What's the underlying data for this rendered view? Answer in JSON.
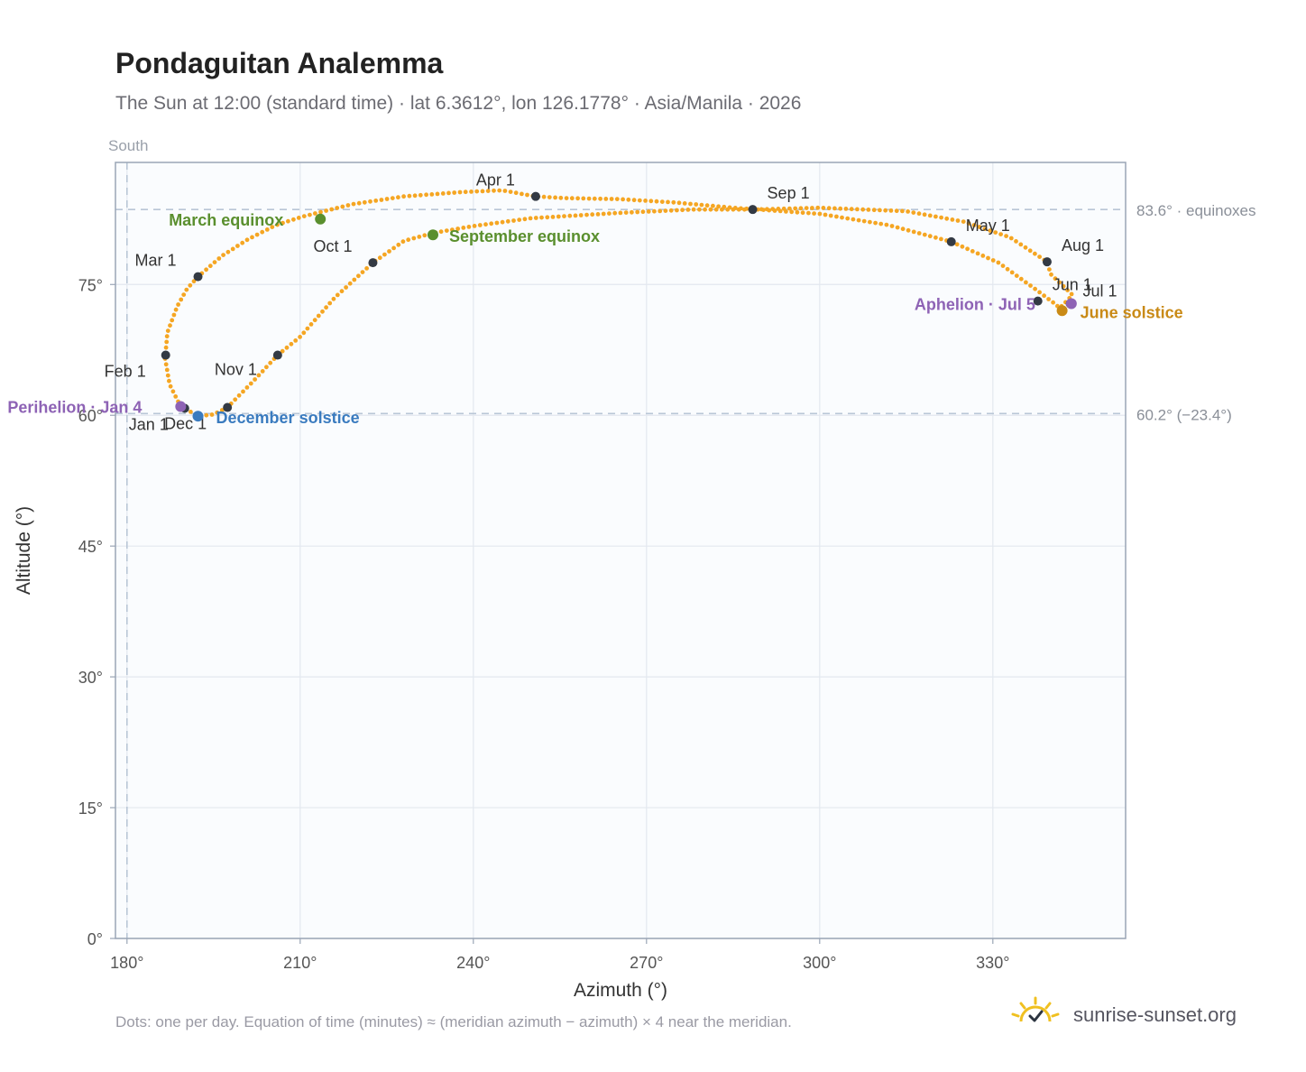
{
  "header": {
    "title": "Pondaguitan Analemma",
    "subtitle": "The Sun at 12:00 (standard time) · lat 6.3612°, lon 126.1778° · Asia/Manila · 2026"
  },
  "footer": {
    "note": "Dots: one per day. Equation of time (minutes) ≈ (meridian azimuth − azimuth) × 4 near the meridian.",
    "brand": "sunrise-sunset.org"
  },
  "colors": {
    "curve": "#f5a623",
    "month_dot": "#333a44",
    "equinox": "#5a8f2e",
    "december_solstice": "#3a7bbf",
    "june_solstice": "#c98a16",
    "apsis": "#8e63b5",
    "plot_bg": "#fafcfe",
    "grid": "#e3e8ef",
    "axis": "#9aa5b5",
    "ref_line": "#b9c6d6",
    "brand_sun": "#f0c020"
  },
  "chart_data": {
    "type": "scatter",
    "xlabel": "Azimuth (°)",
    "ylabel": "Altitude (°)",
    "xlim": [
      178,
      353
    ],
    "ylim": [
      0,
      89
    ],
    "xticks": [
      180,
      210,
      240,
      270,
      300,
      330
    ],
    "yticks": [
      0,
      15,
      30,
      45,
      60,
      75
    ],
    "x_tick_labels": [
      "180°",
      "210°",
      "240°",
      "270°",
      "300°",
      "330°"
    ],
    "y_tick_labels": [
      "0°",
      "15°",
      "30°",
      "45°",
      "60°",
      "75°"
    ],
    "grid": true,
    "meridian_label": "South",
    "meridian_azimuth": 180,
    "reference_lines": [
      {
        "altitude": 83.6,
        "label": "83.6° · equinoxes"
      },
      {
        "altitude": 60.2,
        "label": "60.2° (−23.4°)"
      }
    ],
    "path": [
      [
        189.3,
        61.0
      ],
      [
        187.4,
        63.5
      ],
      [
        186.6,
        66.5
      ],
      [
        187.0,
        69.5
      ],
      [
        188.7,
        72.5
      ],
      [
        190.4,
        74.5
      ],
      [
        192.3,
        75.9
      ],
      [
        196.5,
        78.3
      ],
      [
        201.0,
        80.2
      ],
      [
        205.8,
        81.8
      ],
      [
        210.5,
        82.8
      ],
      [
        213.5,
        83.3
      ],
      [
        219.0,
        84.2
      ],
      [
        228.0,
        85.1
      ],
      [
        238.0,
        85.6
      ],
      [
        245.0,
        85.8
      ],
      [
        250.8,
        85.1
      ],
      [
        256.0,
        84.9
      ],
      [
        265.0,
        84.8
      ],
      [
        275.0,
        84.4
      ],
      [
        285.0,
        83.8
      ],
      [
        300.0,
        83.1
      ],
      [
        312.0,
        81.8
      ],
      [
        322.8,
        79.9
      ],
      [
        331.0,
        77.5
      ],
      [
        337.5,
        74.4
      ],
      [
        340.5,
        72.9
      ],
      [
        341.6,
        72.3
      ],
      [
        343.8,
        73.8
      ],
      [
        340.0,
        76.2
      ],
      [
        339.4,
        77.6
      ],
      [
        333.0,
        80.4
      ],
      [
        325.0,
        82.2
      ],
      [
        315.0,
        83.4
      ],
      [
        300.0,
        83.8
      ],
      [
        288.4,
        83.6
      ],
      [
        278.0,
        83.6
      ],
      [
        265.0,
        83.2
      ],
      [
        250.0,
        82.6
      ],
      [
        240.0,
        81.7
      ],
      [
        233.0,
        80.9
      ],
      [
        228.0,
        80.0
      ],
      [
        222.6,
        77.5
      ],
      [
        216.0,
        73.5
      ],
      [
        210.0,
        69.0
      ],
      [
        206.1,
        66.9
      ],
      [
        202.0,
        64.0
      ],
      [
        197.4,
        60.9
      ],
      [
        195.0,
        60.1
      ],
      [
        192.3,
        59.9
      ],
      [
        190.0,
        60.8
      ],
      [
        189.3,
        61.0
      ]
    ],
    "month_markers": [
      {
        "label": "Jan 1",
        "azimuth": 190.0,
        "altitude": 60.8
      },
      {
        "label": "Feb 1",
        "azimuth": 186.7,
        "altitude": 66.9
      },
      {
        "label": "Mar 1",
        "azimuth": 192.3,
        "altitude": 75.9
      },
      {
        "label": "Apr 1",
        "azimuth": 250.8,
        "altitude": 85.1
      },
      {
        "label": "May 1",
        "azimuth": 322.8,
        "altitude": 79.9
      },
      {
        "label": "Jun 1",
        "azimuth": 337.8,
        "altitude": 73.1
      },
      {
        "label": "Jul 1",
        "azimuth": 343.4,
        "altitude": 72.8
      },
      {
        "label": "Aug 1",
        "azimuth": 339.4,
        "altitude": 77.6
      },
      {
        "label": "Sep 1",
        "azimuth": 288.4,
        "altitude": 83.6
      },
      {
        "label": "Oct 1",
        "azimuth": 222.6,
        "altitude": 77.5
      },
      {
        "label": "Nov 1",
        "azimuth": 206.1,
        "altitude": 66.9
      },
      {
        "label": "Dec 1",
        "azimuth": 197.4,
        "altitude": 60.9
      }
    ],
    "events": [
      {
        "label": "March equinox",
        "azimuth": 213.5,
        "altitude": 82.5,
        "color_key": "equinox"
      },
      {
        "label": "September equinox",
        "azimuth": 233.0,
        "altitude": 80.7,
        "color_key": "equinox"
      },
      {
        "label": "December solstice",
        "azimuth": 192.3,
        "altitude": 59.9,
        "color_key": "december_solstice"
      },
      {
        "label": "June solstice",
        "azimuth": 342.0,
        "altitude": 72.0,
        "color_key": "june_solstice"
      },
      {
        "label": "Perihelion · Jan 4",
        "azimuth": 189.3,
        "altitude": 61.0,
        "color_key": "apsis"
      },
      {
        "label": "Aphelion · Jul 5",
        "azimuth": 343.6,
        "altitude": 72.8,
        "color_key": "apsis"
      }
    ]
  }
}
